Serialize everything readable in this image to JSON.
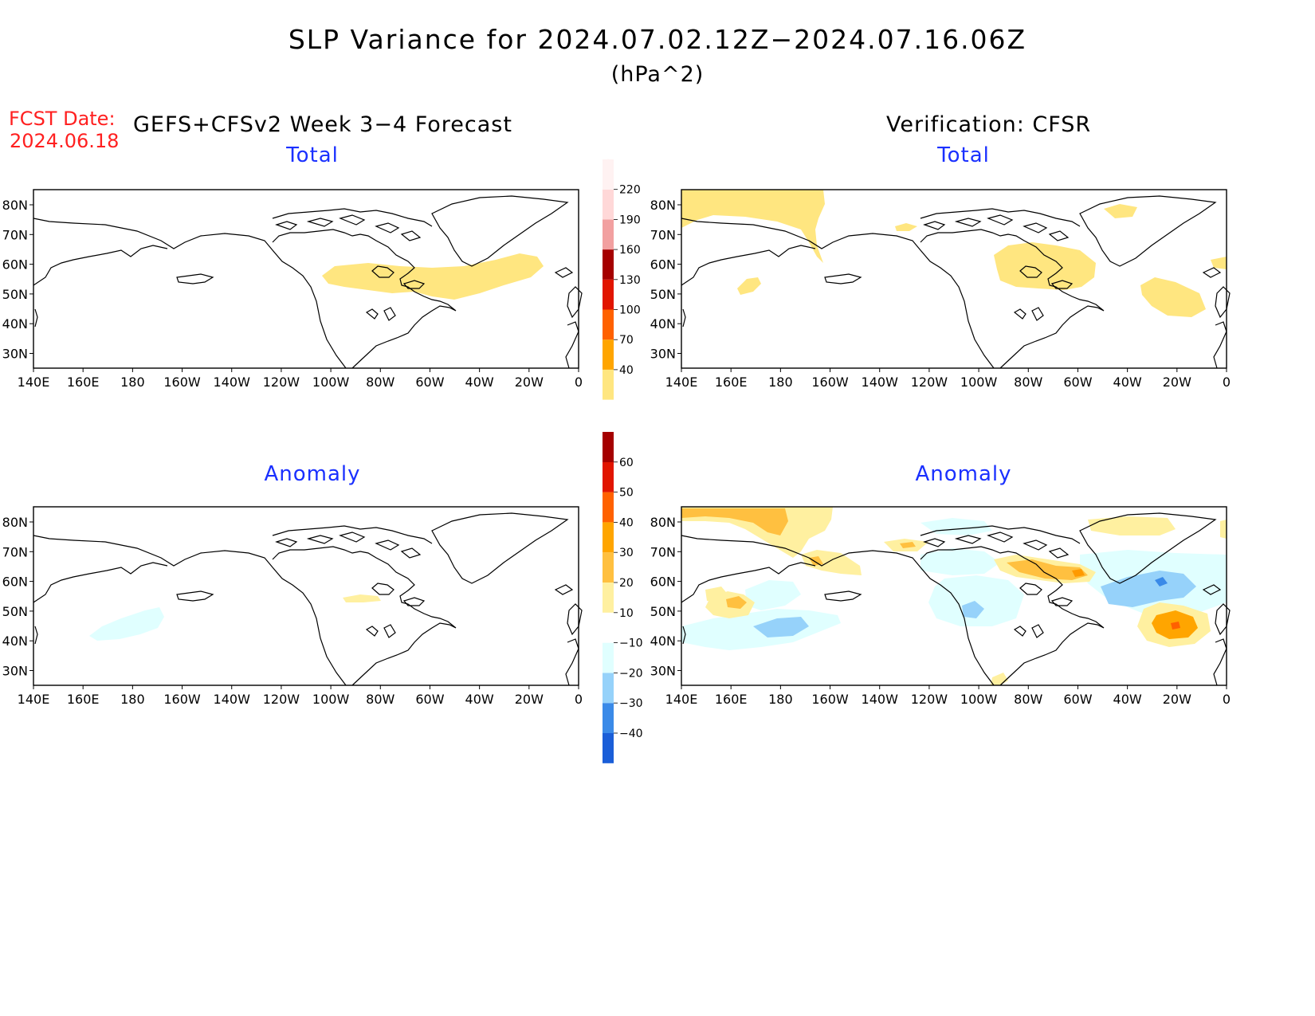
{
  "title": "SLP Variance for 2024.07.02.12Z−2024.07.16.06Z",
  "units": "(hPa^2)",
  "fcst_label": "FCST Date:",
  "fcst_date": "2024.06.18",
  "forecast_heading": "GEFS+CFSv2 Week 3−4 Forecast",
  "verification_heading": "Verification: CFSR",
  "panels": {
    "fc_total": {
      "title": "Total"
    },
    "ver_total": {
      "title": "Total"
    },
    "fc_anom": {
      "title": "Anomaly"
    },
    "ver_anom": {
      "title": "Anomaly"
    }
  },
  "lon_labels": [
    "140E",
    "160E",
    "180",
    "160W",
    "140W",
    "120W",
    "100W",
    "80W",
    "60W",
    "40W",
    "20W",
    "0"
  ],
  "lat_labels": [
    "80N",
    "70N",
    "60N",
    "50N",
    "40N",
    "30N"
  ],
  "colorbars": {
    "total": {
      "levels": [
        "40",
        "70",
        "100",
        "130",
        "160",
        "190",
        "220"
      ],
      "colors": [
        "#ffe680",
        "#ffa500",
        "#ff6100",
        "#e11500",
        "#a50000",
        "#f2a0a0",
        "#ffd8d8",
        "#fff2f2"
      ]
    },
    "anomaly": {
      "levels": [
        "−40",
        "−30",
        "−20",
        "−10",
        "10",
        "20",
        "30",
        "40",
        "50",
        "60"
      ],
      "colors": [
        "#1a5ed8",
        "#3a8ae8",
        "#96d2fa",
        "#e0ffff",
        "#ffffff",
        "#fff0a0",
        "#ffc040",
        "#ffa500",
        "#ff6100",
        "#e11500",
        "#a50000"
      ]
    }
  },
  "colors": {
    "light_yellow": "#ffe680",
    "orange": "#ffc040",
    "deep_orange": "#ff9a00",
    "light_cyan": "#e0ffff",
    "light_blue": "#96d2fa",
    "blue": "#5aa0f0",
    "title_blue": "#1a30ff",
    "fcst_red": "#ff2020"
  }
}
